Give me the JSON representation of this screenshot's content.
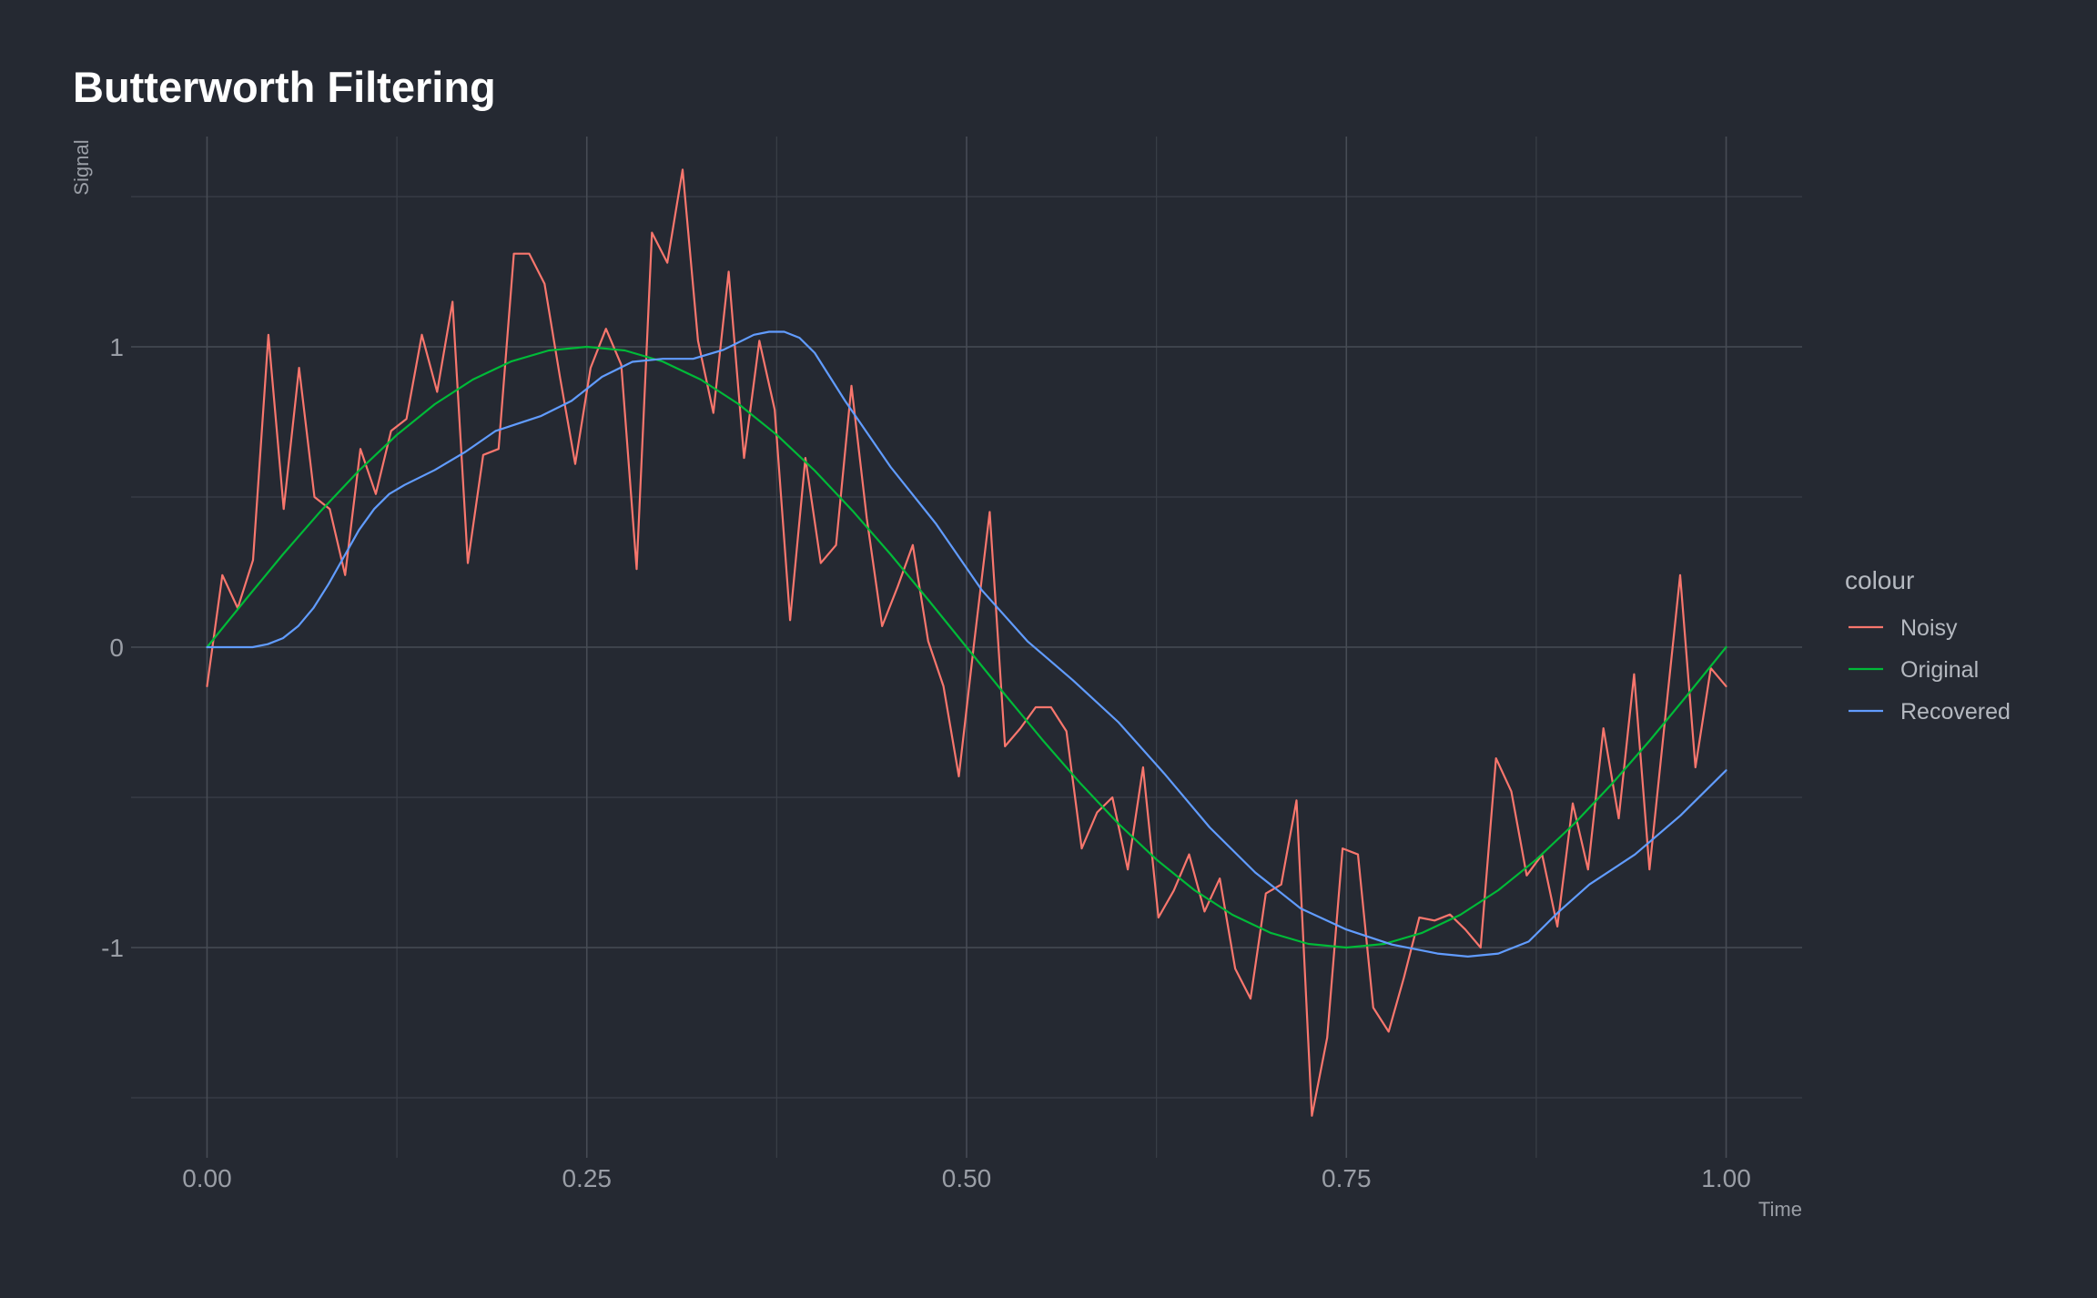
{
  "chart_data": {
    "type": "line",
    "title": "Butterworth Filtering",
    "xlabel": "Time",
    "ylabel": "Signal",
    "xlim": [
      -0.05,
      1.05
    ],
    "ylim": [
      -1.7,
      1.7
    ],
    "x_ticks": [
      0,
      0.25,
      0.5,
      0.75,
      1
    ],
    "x_tick_labels": [
      "0.00",
      "0.25",
      "0.50",
      "0.75",
      "1.00"
    ],
    "y_ticks": [
      -1,
      0,
      1
    ],
    "y_tick_labels": [
      "-1",
      "0",
      "1"
    ],
    "x_minor_grid": [
      0.125,
      0.375,
      0.625,
      0.875
    ],
    "y_minor_grid": [
      -1.5,
      -0.5,
      0.5,
      1.5
    ],
    "grid": true,
    "legend": {
      "title": "colour",
      "position": "right",
      "entries": [
        "Noisy",
        "Original",
        "Recovered"
      ]
    },
    "series": [
      {
        "name": "Noisy",
        "color": "#F8766D",
        "x": [
          0,
          0.0101,
          0.0202,
          0.0303,
          0.0404,
          0.0505,
          0.0606,
          0.0707,
          0.0808,
          0.0909,
          0.101,
          0.1111,
          0.1212,
          0.1313,
          0.1414,
          0.1515,
          0.1616,
          0.1717,
          0.1818,
          0.1919,
          0.202,
          0.2121,
          0.2222,
          0.2323,
          0.2424,
          0.2525,
          0.2626,
          0.2727,
          0.2828,
          0.2929,
          0.303,
          0.3131,
          0.3232,
          0.3333,
          0.3434,
          0.3535,
          0.3636,
          0.3737,
          0.3838,
          0.3939,
          0.404,
          0.4141,
          0.4242,
          0.4343,
          0.4444,
          0.4545,
          0.4646,
          0.4747,
          0.4848,
          0.4949,
          0.5051,
          0.5152,
          0.5253,
          0.5354,
          0.5455,
          0.5556,
          0.5657,
          0.5758,
          0.5859,
          0.596,
          0.6061,
          0.6162,
          0.6263,
          0.6364,
          0.6465,
          0.6566,
          0.6667,
          0.6768,
          0.6869,
          0.697,
          0.7071,
          0.7172,
          0.7273,
          0.7374,
          0.7475,
          0.7576,
          0.7677,
          0.7778,
          0.7879,
          0.798,
          0.8081,
          0.8182,
          0.8283,
          0.8384,
          0.8485,
          0.8586,
          0.8687,
          0.8788,
          0.8889,
          0.899,
          0.9091,
          0.9192,
          0.9293,
          0.9394,
          0.9495,
          0.9596,
          0.9697,
          0.9798,
          0.9899,
          1.0
        ],
        "values": [
          -0.13,
          0.24,
          0.13,
          0.29,
          1.04,
          0.46,
          0.93,
          0.5,
          0.46,
          0.24,
          0.66,
          0.51,
          0.72,
          0.76,
          1.04,
          0.85,
          1.15,
          0.28,
          0.64,
          0.66,
          1.31,
          1.31,
          1.21,
          0.9,
          0.61,
          0.93,
          1.06,
          0.94,
          0.26,
          1.38,
          1.28,
          1.59,
          1.02,
          0.78,
          1.25,
          0.63,
          1.02,
          0.79,
          0.09,
          0.63,
          0.28,
          0.34,
          0.87,
          0.43,
          0.07,
          0.2,
          0.34,
          0.02,
          -0.13,
          -0.43,
          0.02,
          0.45,
          -0.33,
          -0.27,
          -0.2,
          -0.2,
          -0.28,
          -0.67,
          -0.55,
          -0.5,
          -0.74,
          -0.4,
          -0.9,
          -0.81,
          -0.69,
          -0.88,
          -0.77,
          -1.07,
          -1.17,
          -0.82,
          -0.79,
          -0.51,
          -1.56,
          -1.3,
          -0.67,
          -0.69,
          -1.2,
          -1.28,
          -1.1,
          -0.9,
          -0.91,
          -0.89,
          -0.94,
          -1.0,
          -0.37,
          -0.48,
          -0.76,
          -0.69,
          -0.93,
          -0.52,
          -0.74,
          -0.27,
          -0.57,
          -0.09,
          -0.74,
          -0.25,
          0.24,
          -0.4,
          -0.07,
          -0.13
        ]
      },
      {
        "name": "Original",
        "color": "#00BA38",
        "function": "sin(2*pi*t)",
        "x": [
          0,
          0.025,
          0.05,
          0.075,
          0.1,
          0.125,
          0.15,
          0.175,
          0.2,
          0.225,
          0.25,
          0.275,
          0.3,
          0.325,
          0.35,
          0.375,
          0.4,
          0.425,
          0.45,
          0.475,
          0.5,
          0.525,
          0.55,
          0.575,
          0.6,
          0.625,
          0.65,
          0.675,
          0.7,
          0.725,
          0.75,
          0.775,
          0.8,
          0.825,
          0.85,
          0.875,
          0.9,
          0.925,
          0.95,
          0.975,
          1.0
        ],
        "values": [
          0.0,
          0.156,
          0.309,
          0.454,
          0.588,
          0.707,
          0.809,
          0.891,
          0.951,
          0.988,
          1.0,
          0.988,
          0.951,
          0.891,
          0.809,
          0.707,
          0.588,
          0.454,
          0.309,
          0.156,
          0.0,
          -0.156,
          -0.309,
          -0.454,
          -0.588,
          -0.707,
          -0.809,
          -0.891,
          -0.951,
          -0.988,
          -1.0,
          -0.988,
          -0.951,
          -0.891,
          -0.809,
          -0.707,
          -0.588,
          -0.454,
          -0.309,
          -0.156,
          0.0
        ]
      },
      {
        "name": "Recovered",
        "color": "#619CFF",
        "x": [
          0,
          0.02,
          0.03,
          0.04,
          0.05,
          0.06,
          0.07,
          0.08,
          0.09,
          0.1,
          0.11,
          0.12,
          0.13,
          0.15,
          0.17,
          0.19,
          0.22,
          0.24,
          0.26,
          0.28,
          0.3,
          0.32,
          0.34,
          0.36,
          0.37,
          0.38,
          0.39,
          0.4,
          0.42,
          0.45,
          0.48,
          0.51,
          0.54,
          0.57,
          0.6,
          0.63,
          0.66,
          0.69,
          0.72,
          0.75,
          0.78,
          0.81,
          0.83,
          0.85,
          0.87,
          0.89,
          0.91,
          0.94,
          0.97,
          1.0
        ],
        "values": [
          0.0,
          0.0,
          0.0,
          0.01,
          0.03,
          0.07,
          0.13,
          0.21,
          0.3,
          0.39,
          0.46,
          0.51,
          0.54,
          0.59,
          0.65,
          0.72,
          0.77,
          0.82,
          0.9,
          0.95,
          0.96,
          0.96,
          0.99,
          1.04,
          1.05,
          1.05,
          1.03,
          0.98,
          0.82,
          0.6,
          0.41,
          0.19,
          0.02,
          -0.11,
          -0.25,
          -0.42,
          -0.6,
          -0.75,
          -0.87,
          -0.94,
          -0.99,
          -1.02,
          -1.03,
          -1.02,
          -0.98,
          -0.88,
          -0.79,
          -0.69,
          -0.56,
          -0.41
        ]
      }
    ]
  }
}
